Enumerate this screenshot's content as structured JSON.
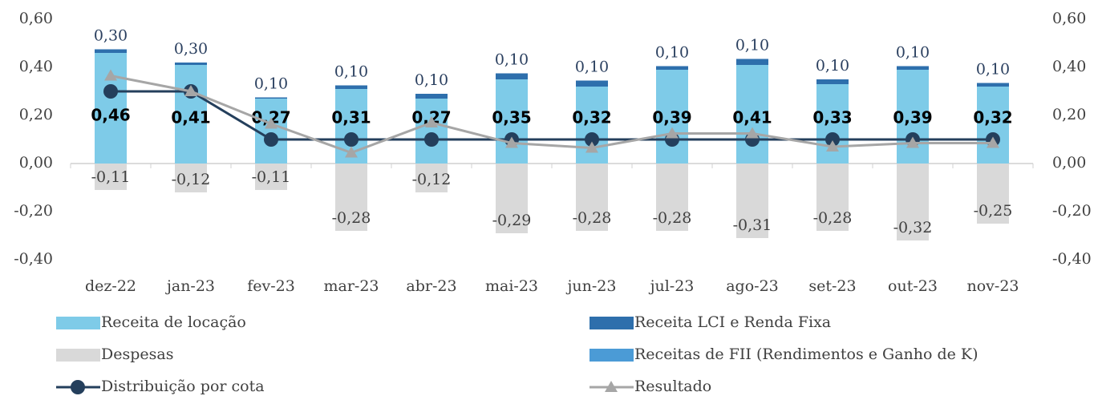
{
  "chart_data": {
    "type": "bar",
    "categories": [
      "dez-22",
      "jan-23",
      "fev-23",
      "mar-23",
      "abr-23",
      "mai-23",
      "jun-23",
      "jul-23",
      "ago-23",
      "set-23",
      "out-23",
      "nov-23"
    ],
    "series": [
      {
        "name": "Receita de locação",
        "type": "bar",
        "color": "#7ecbe8",
        "values": [
          0.46,
          0.41,
          0.27,
          0.31,
          0.27,
          0.35,
          0.32,
          0.39,
          0.41,
          0.33,
          0.39,
          0.32
        ],
        "value_labels": [
          "0,46",
          "0,41",
          "0,27",
          "0,31",
          "0,27",
          "0,35",
          "0,32",
          "0,39",
          "0,41",
          "0,33",
          "0,39",
          "0,32"
        ]
      },
      {
        "name": "Receita LCI e Renda Fixa",
        "type": "bar",
        "color": "#2e6fac",
        "values": [
          0.015,
          0.01,
          0.005,
          0.015,
          0.02,
          0.025,
          0.025,
          0.015,
          0.025,
          0.02,
          0.015,
          0.015
        ]
      },
      {
        "name": "Despesas",
        "type": "bar",
        "color": "#d9d9d9",
        "values": [
          -0.11,
          -0.12,
          -0.11,
          -0.28,
          -0.12,
          -0.29,
          -0.28,
          -0.28,
          -0.31,
          -0.28,
          -0.32,
          -0.25
        ],
        "value_labels": [
          "-0,11",
          "-0,12",
          "-0,11",
          "-0,28",
          "-0,12",
          "-0,29",
          "-0,28",
          "-0,28",
          "-0,31",
          "-0,28",
          "-0,32",
          "-0,25"
        ]
      },
      {
        "name": "Receitas de FII (Rendimentos e Ganho de K)",
        "type": "bar",
        "color": "#4b9bd6",
        "values": [
          0,
          0,
          0,
          0,
          0,
          0,
          0,
          0,
          0,
          0,
          0,
          0
        ]
      },
      {
        "name": "Distribuição por cota",
        "type": "line",
        "marker": "circle",
        "color": "#243f5c",
        "values": [
          0.3,
          0.3,
          0.1,
          0.1,
          0.1,
          0.1,
          0.1,
          0.1,
          0.1,
          0.1,
          0.1,
          0.1
        ],
        "value_labels": [
          "0,30",
          "0,30",
          "0,10",
          "0,10",
          "0,10",
          "0,10",
          "0,10",
          "0,10",
          "0,10",
          "0,10",
          "0,10",
          "0,10"
        ]
      },
      {
        "name": "Resultado",
        "type": "line",
        "marker": "triangle",
        "color": "#a6a6a6",
        "axis": "y2",
        "values": [
          0.365,
          0.3,
          0.165,
          0.045,
          0.17,
          0.085,
          0.065,
          0.125,
          0.125,
          0.07,
          0.085,
          0.085
        ]
      }
    ],
    "ylim": [
      -0.4,
      0.6
    ],
    "yticks": [
      {
        "value": 0.6,
        "label": "0,60"
      },
      {
        "value": 0.4,
        "label": "0,40"
      },
      {
        "value": 0.2,
        "label": "0,20"
      },
      {
        "value": 0,
        "label": "0,00"
      },
      {
        "value": -0.2,
        "label": "-0,20"
      },
      {
        "value": -0.4,
        "label": "-0,40"
      }
    ],
    "y2lim": [
      -0.4,
      0.6
    ],
    "y2ticks": [
      {
        "value": 0.6,
        "label": "0,60"
      },
      {
        "value": 0.4,
        "label": "0,40"
      },
      {
        "value": 0.2,
        "label": "0,20"
      },
      {
        "value": 0,
        "label": "0,00"
      },
      {
        "value": -0.2,
        "label": "-0,20"
      },
      {
        "value": -0.4,
        "label": "-0,40"
      }
    ],
    "grid": false,
    "legend": "bottom"
  }
}
